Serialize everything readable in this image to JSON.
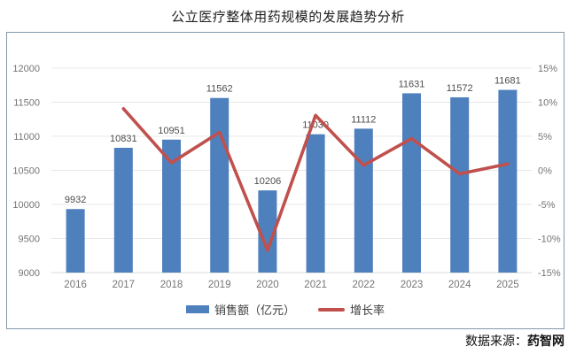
{
  "title": "公立医疗整体用药规模的发展趋势分析",
  "source": {
    "prefix": "数据来源：",
    "name": "药智网"
  },
  "legend": {
    "items": [
      {
        "label": "销售额（亿元）",
        "type": "bar"
      },
      {
        "label": "增长率",
        "type": "line"
      }
    ]
  },
  "colors": {
    "bar": "#4e80bd",
    "line": "#c0504d",
    "grid": "#e8e8e8",
    "baseline": "#d9d9d9",
    "axis_text": "#757575",
    "bar_label_text": "#4d4d4d",
    "box_border": "#8499ac"
  },
  "chart_data": {
    "type": "bar+line combo",
    "title": "公立医疗整体用药规模的发展趋势分析",
    "categories": [
      "2016",
      "2017",
      "2018",
      "2019",
      "2020",
      "2021",
      "2022",
      "2023",
      "2024",
      "2025"
    ],
    "series": [
      {
        "name": "销售额（亿元）",
        "type": "bar",
        "axis": "left",
        "values": [
          9932,
          10831,
          10951,
          11562,
          10206,
          11030,
          11112,
          11631,
          11572,
          11681
        ]
      },
      {
        "name": "增长率",
        "type": "line",
        "axis": "right",
        "unit": "%",
        "values": [
          null,
          9.05,
          1.11,
          5.58,
          -11.73,
          8.07,
          0.74,
          4.67,
          -0.51,
          0.94
        ]
      }
    ],
    "left_axis": {
      "min": 9000,
      "max": 12000,
      "step": 500,
      "ticks": [
        "12000",
        "11500",
        "11000",
        "10500",
        "10000",
        "9500",
        "9000"
      ]
    },
    "right_axis": {
      "min": -15,
      "max": 15,
      "step": 5,
      "ticks": [
        "15%",
        "10%",
        "5%",
        "0%",
        "-5%",
        "-10%",
        "-15%"
      ]
    },
    "grid": true,
    "legend_position": "bottom",
    "data_labels": true
  }
}
